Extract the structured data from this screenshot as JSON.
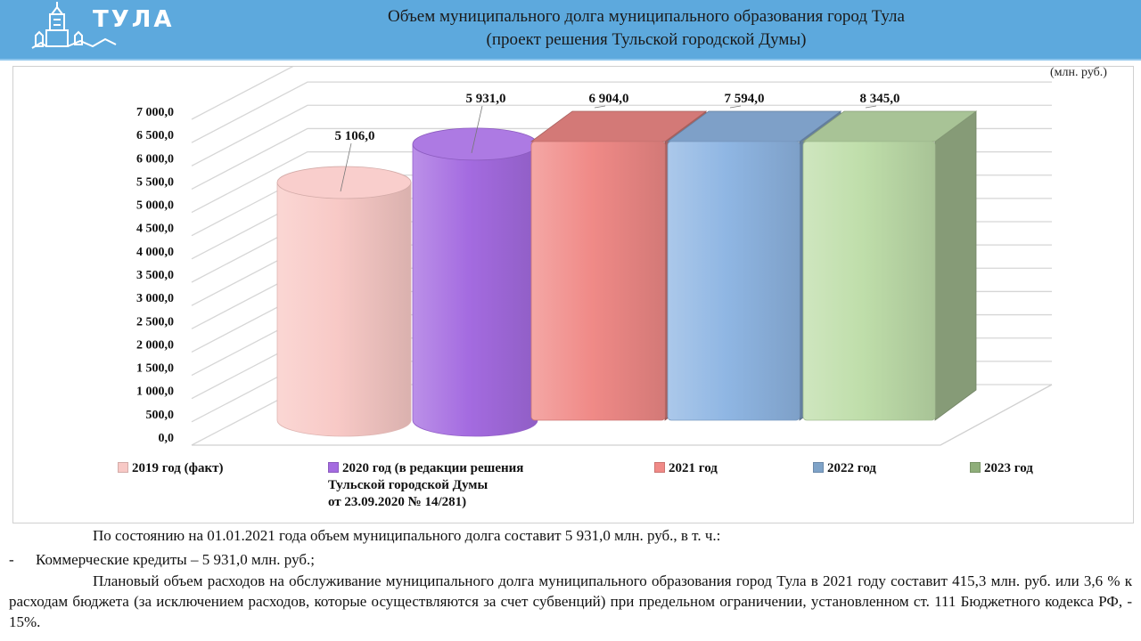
{
  "header": {
    "logo_text": "ТУЛА",
    "title_line1": "Объем муниципального долга муниципального образования город Тула",
    "title_line2": "(проект решения Тульской городской Думы)"
  },
  "unit_label": "(млн. руб.)",
  "chart_data": {
    "type": "bar",
    "title": "Объем муниципального долга муниципального образования город Тула (проект решения Тульской городской Думы)",
    "unit": "(млн. руб.)",
    "ylim": [
      0,
      7000
    ],
    "yticks": [
      "0,0",
      "500,0",
      "1 000,0",
      "1 500,0",
      "2 000,0",
      "2 500,0",
      "3 000,0",
      "3 500,0",
      "4 000,0",
      "4 500,0",
      "5 000,0",
      "5 500,0",
      "6 000,0",
      "6 500,0",
      "7 000,0"
    ],
    "categories": [
      "2019 год (факт)",
      "2020 год (в редакции решения Тульской городской Думы от 23.09.2020 № 14/281)",
      "2021 год",
      "2022 год",
      "2023 год"
    ],
    "values": [
      5106.0,
      5931.0,
      6904.0,
      7594.0,
      8345.0
    ],
    "value_labels": [
      "5 106,0",
      "5 931,0",
      "6 904,0",
      "7 594,0",
      "8 345,0"
    ],
    "shapes": [
      "cylinder",
      "cylinder",
      "box",
      "box",
      "box"
    ],
    "colors": [
      "#f8c9c6",
      "#a46be0",
      "#f08a87",
      "#8fb6e3",
      "#bfdeaa"
    ],
    "legend_position": "bottom",
    "grid": true
  },
  "legend": [
    {
      "label": "2019 год (факт)",
      "color": "#f8c9c6"
    },
    {
      "label": "2020 год (в редакции решения\nТульской городской Думы\nот 23.09.2020 № 14/281)",
      "color": "#a46be0"
    },
    {
      "label": "2021 год",
      "color": "#f08a87"
    },
    {
      "label": "2022 год",
      "color": "#7fa3c8"
    },
    {
      "label": "2023 год",
      "color": "#8fae7a"
    }
  ],
  "text": {
    "p1": "По состоянию на 01.01.2021 года объем муниципального  долга составит 5 931,0 млн. руб., в т. ч.:",
    "p2_dash": "-",
    "p2": "Коммерческие кредиты – 5 931,0 млн. руб.;",
    "p3": "Плановый объем расходов на обслуживание муниципального долга муниципального образования город Тула в 2021 году составит 415,3 млн. руб. или 3,6 % к расходам бюджета (за исключением расходов, которые осуществляются за счет субвенций) при предельном ограничении, установленном  ст. 111 Бюджетного кодекса РФ, - 15%."
  }
}
